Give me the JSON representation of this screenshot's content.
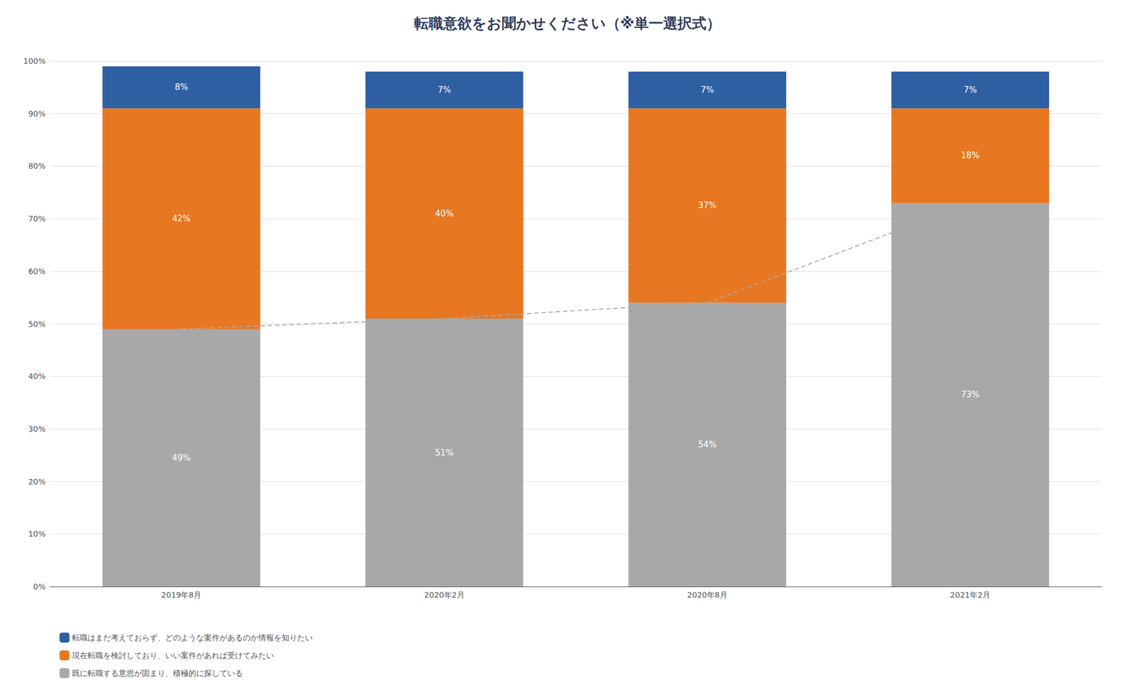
{
  "chart_data": {
    "type": "bar",
    "title": "転職意欲をお聞かせください（※単一選択式）",
    "categories": [
      "2019年8月",
      "2020年2月",
      "2020年8月",
      "2021年2月"
    ],
    "stacked": true,
    "data_labels": true,
    "grid": true,
    "legend": "lower left",
    "ylim": [
      0,
      100
    ],
    "yticks": [
      {
        "value": 0,
        "label": "0%"
      },
      {
        "value": 10,
        "label": "10%"
      },
      {
        "value": 20,
        "label": "20%"
      },
      {
        "value": 30,
        "label": "30%"
      },
      {
        "value": 40,
        "label": "40%"
      },
      {
        "value": 50,
        "label": "50%"
      },
      {
        "value": 60,
        "label": "60%"
      },
      {
        "value": 70,
        "label": "70%"
      },
      {
        "value": 80,
        "label": "80%"
      },
      {
        "value": 90,
        "label": "90%"
      },
      {
        "value": 100,
        "label": "100%"
      }
    ],
    "series": [
      {
        "name": "既に転職する意思が固まり、積極的に探している",
        "type": "bar",
        "color": "#A8A8A8",
        "values": [
          49,
          51,
          54,
          73
        ],
        "value_labels": [
          "49%",
          "51%",
          "54%",
          "73%"
        ]
      },
      {
        "name": "現在転職を検討しており、いい案件があれば受けてみたい",
        "type": "bar",
        "color": "#E87722",
        "values": [
          42,
          40,
          37,
          18
        ],
        "value_labels": [
          "42%",
          "40%",
          "37%",
          "18%"
        ]
      },
      {
        "name": "転職はまだ考えておらず、どのような案件があるのか情報を知りたい",
        "type": "bar",
        "color": "#2E5FA3",
        "values": [
          8,
          7,
          7,
          7
        ],
        "value_labels": [
          "8%",
          "7%",
          "7%",
          "7%"
        ]
      },
      {
        "type": "line",
        "line_style": "dashed",
        "color": "#AAAAAA",
        "values": [
          49,
          51,
          54,
          73
        ]
      }
    ]
  }
}
